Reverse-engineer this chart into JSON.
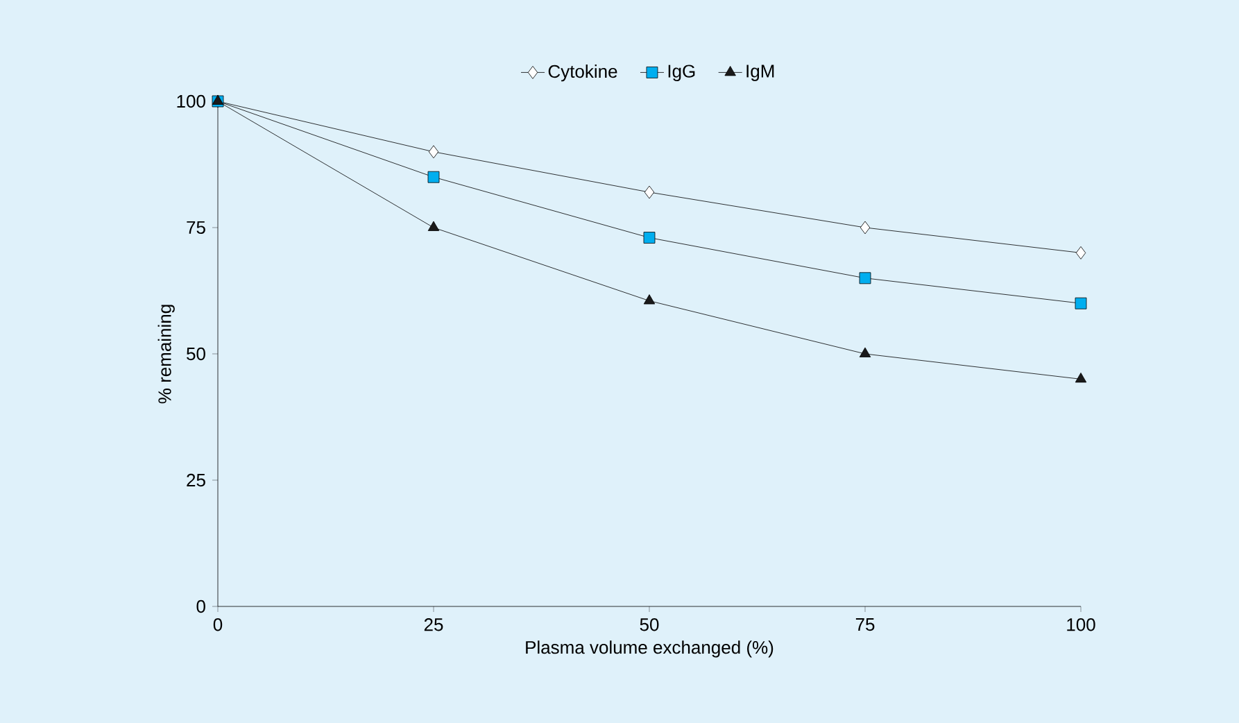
{
  "chart_data": {
    "type": "line",
    "xlabel": "Plasma volume exchanged (%)",
    "ylabel": "% remaining",
    "x": [
      0,
      25,
      50,
      75,
      100
    ],
    "series": [
      {
        "name": "Cytokine",
        "color": "#ffffff",
        "marker": "diamond",
        "values": [
          100,
          90,
          82,
          75,
          70
        ]
      },
      {
        "name": "IgG",
        "color": "#00aeef",
        "marker": "square",
        "values": [
          100,
          85,
          73,
          65,
          60
        ]
      },
      {
        "name": "IgM",
        "color": "#1a1a1a",
        "marker": "triangle",
        "values": [
          100,
          75,
          60.5,
          50,
          45
        ]
      }
    ],
    "xlim": [
      0,
      100
    ],
    "ylim": [
      0,
      100
    ],
    "xticks": [
      0,
      25,
      50,
      75,
      100
    ],
    "yticks": [
      0,
      25,
      50,
      75,
      100
    ],
    "grid": false,
    "legend": "top",
    "line_style": "solid"
  }
}
